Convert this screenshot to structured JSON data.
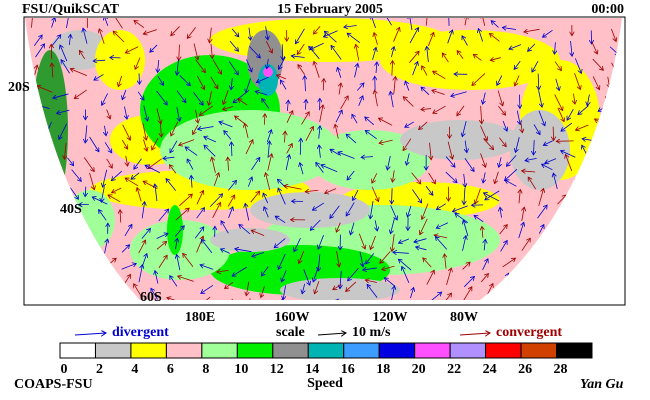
{
  "header": {
    "left": "FSU/QuikSCAT",
    "center": "15 February 2005",
    "right": "00:00"
  },
  "map": {
    "lat_labels": [
      "20S",
      "40S",
      "60S"
    ],
    "lon_labels": [
      "180E",
      "160W",
      "120W",
      "80W"
    ]
  },
  "legend": {
    "divergent": "divergent",
    "scale": "scale",
    "scale_value": "10 m/s",
    "convergent": "convergent"
  },
  "colorbar": {
    "ticks": [
      0,
      2,
      4,
      6,
      8,
      10,
      12,
      14,
      16,
      18,
      20,
      22,
      24,
      26,
      28
    ],
    "colors": [
      "#ffffff",
      "#c8c8c8",
      "#ffff00",
      "#ffc0c8",
      "#a0ff98",
      "#00f000",
      "#909090",
      "#00b4b4",
      "#3c9cff",
      "#0000e0",
      "#ff50ff",
      "#b090ff",
      "#ff0000",
      "#d04000",
      "#000000"
    ],
    "label": "Speed"
  },
  "footer": {
    "left": "COAPS-FSU",
    "right": "Yan Gu"
  }
}
